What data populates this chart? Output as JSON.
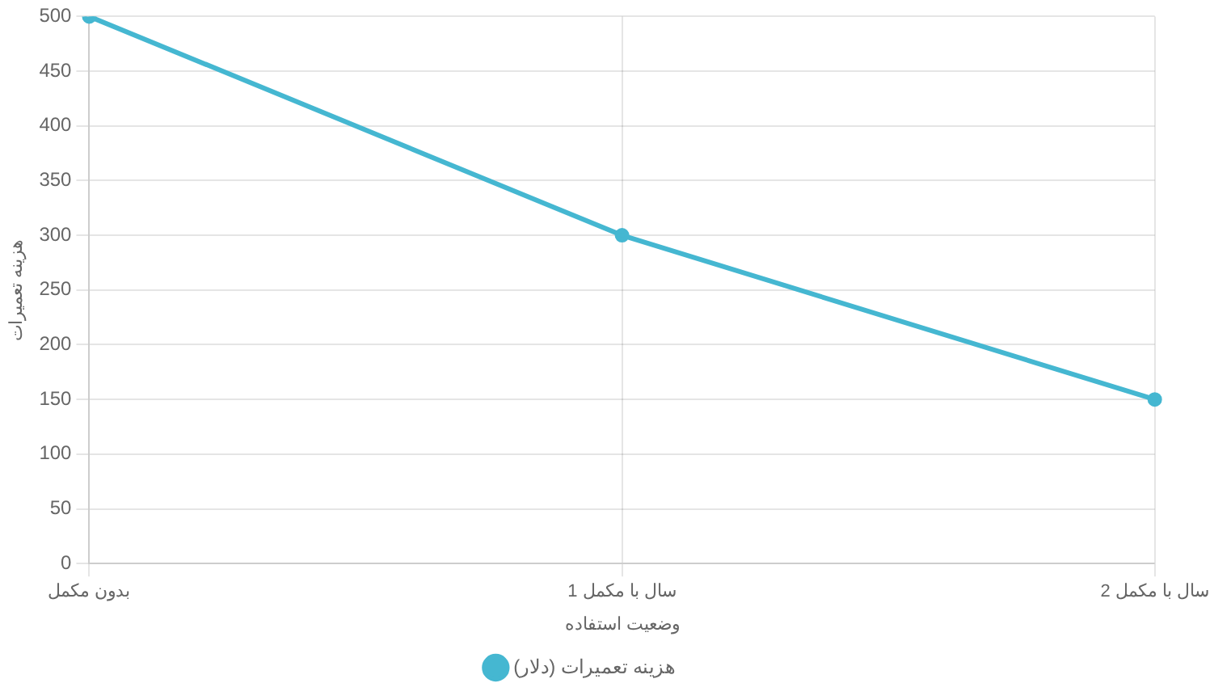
{
  "chart_data": {
    "type": "line",
    "xlabel": "وضعیت استفاده",
    "ylabel": "هزینه تعمیرات",
    "categories": [
      "بدون مکمل",
      "1 سال با مکمل",
      "2 سال با مکمل"
    ],
    "series": [
      {
        "name": "هزینه تعمیرات (دلار)",
        "color": "#45b7d1",
        "values": [
          500,
          300,
          150
        ]
      }
    ],
    "ylim": [
      0,
      500
    ],
    "yticks": [
      0,
      50,
      100,
      150,
      200,
      250,
      300,
      350,
      400,
      450,
      500
    ],
    "grid": true,
    "legend": "bottom",
    "marker": "circle",
    "line_style": "solid"
  }
}
